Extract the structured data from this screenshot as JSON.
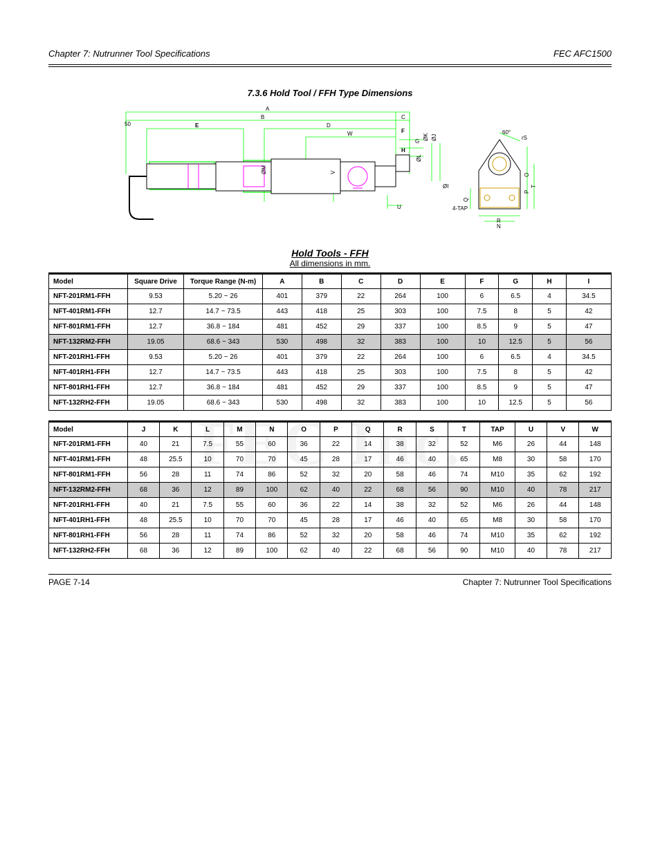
{
  "meta": {
    "chapter_left": "Chapter 7: Nutrunner Tool Specifications",
    "chapter_right": "FEC AFC1500",
    "title": "7.3.6 Hold Tool / FFH Type Dimensions",
    "subtitle_over_tables": "Hold Tools - FFH",
    "units": "All dimensions in mm.",
    "footer_left": "PAGE 7-14",
    "footer_right": "Chapter 7: Nutrunner Tool Specifications",
    "watermark": "FEC Inc."
  },
  "diagram": {
    "background": "#ffffff",
    "outline_dim_color": "#00ff00",
    "body_color": "#000000",
    "accent_color": "#ff00ff",
    "mount_color": "#cc9900",
    "labels": [
      "A",
      "B",
      "C",
      "D",
      "E",
      "F",
      "G",
      "H",
      "ØI",
      "ØJ",
      "ØK",
      "ØL",
      "ØM",
      "N",
      "O",
      "P",
      "Q",
      "R",
      "rS",
      "T",
      "U",
      "V",
      "W",
      "50",
      "60°",
      "4-TAP"
    ]
  },
  "table1": {
    "columns": [
      "Model",
      "Square Drive",
      "Torque Range (N-m)",
      "A",
      "B",
      "C",
      "D",
      "E",
      "F",
      "G",
      "H",
      "I"
    ],
    "col_widths_pct": [
      14,
      10,
      14,
      7,
      7,
      7,
      7,
      8,
      6,
      6,
      6,
      8
    ],
    "rows": [
      [
        "NFT-201RM1-FFH",
        "9.53",
        "5.20 ~ 26",
        "401",
        "379",
        "22",
        "264",
        "100",
        "6",
        "6.5",
        "4",
        "34.5"
      ],
      [
        "NFT-401RM1-FFH",
        "12.7",
        "14.7 ~ 73.5",
        "443",
        "418",
        "25",
        "303",
        "100",
        "7.5",
        "8",
        "5",
        "42"
      ],
      [
        "NFT-801RM1-FFH",
        "12.7",
        "36.8 ~ 184",
        "481",
        "452",
        "29",
        "337",
        "100",
        "8.5",
        "9",
        "5",
        "47"
      ],
      [
        "NFT-132RM2-FFH",
        "19.05",
        "68.6 ~ 343",
        "530",
        "498",
        "32",
        "383",
        "100",
        "10",
        "12.5",
        "5",
        "56"
      ],
      [
        "NFT-201RH1-FFH",
        "9.53",
        "5.20 ~ 26",
        "401",
        "379",
        "22",
        "264",
        "100",
        "6",
        "6.5",
        "4",
        "34.5"
      ],
      [
        "NFT-401RH1-FFH",
        "12.7",
        "14.7 ~ 73.5",
        "443",
        "418",
        "25",
        "303",
        "100",
        "7.5",
        "8",
        "5",
        "42"
      ],
      [
        "NFT-801RH1-FFH",
        "12.7",
        "36.8 ~ 184",
        "481",
        "452",
        "29",
        "337",
        "100",
        "8.5",
        "9",
        "5",
        "47"
      ],
      [
        "NFT-132RH2-FFH",
        "19.05",
        "68.6 ~ 343",
        "530",
        "498",
        "32",
        "383",
        "100",
        "10",
        "12.5",
        "5",
        "56"
      ]
    ],
    "shade_row_index": 3
  },
  "table2": {
    "columns": [
      "Model",
      "J",
      "K",
      "L",
      "M",
      "N",
      "O",
      "P",
      "Q",
      "R",
      "S",
      "T",
      "TAP",
      "U",
      "V",
      "W"
    ],
    "col_widths_pct": [
      14,
      5.7,
      5.7,
      5.7,
      5.7,
      5.7,
      5.7,
      5.7,
      5.7,
      5.7,
      5.7,
      5.7,
      6.2,
      5.7,
      5.7,
      5.7
    ],
    "rows": [
      [
        "NFT-201RM1-FFH",
        "40",
        "21",
        "7.5",
        "55",
        "60",
        "36",
        "22",
        "14",
        "38",
        "32",
        "52",
        "M6",
        "26",
        "44",
        "148"
      ],
      [
        "NFT-401RM1-FFH",
        "48",
        "25.5",
        "10",
        "70",
        "70",
        "45",
        "28",
        "17",
        "46",
        "40",
        "65",
        "M8",
        "30",
        "58",
        "170"
      ],
      [
        "NFT-801RM1-FFH",
        "56",
        "28",
        "11",
        "74",
        "86",
        "52",
        "32",
        "20",
        "58",
        "46",
        "74",
        "M10",
        "35",
        "62",
        "192"
      ],
      [
        "NFT-132RM2-FFH",
        "68",
        "36",
        "12",
        "89",
        "100",
        "62",
        "40",
        "22",
        "68",
        "56",
        "90",
        "M10",
        "40",
        "78",
        "217"
      ],
      [
        "NFT-201RH1-FFH",
        "40",
        "21",
        "7.5",
        "55",
        "60",
        "36",
        "22",
        "14",
        "38",
        "32",
        "52",
        "M6",
        "26",
        "44",
        "148"
      ],
      [
        "NFT-401RH1-FFH",
        "48",
        "25.5",
        "10",
        "70",
        "70",
        "45",
        "28",
        "17",
        "46",
        "40",
        "65",
        "M8",
        "30",
        "58",
        "170"
      ],
      [
        "NFT-801RH1-FFH",
        "56",
        "28",
        "11",
        "74",
        "86",
        "52",
        "32",
        "20",
        "58",
        "46",
        "74",
        "M10",
        "35",
        "62",
        "192"
      ],
      [
        "NFT-132RH2-FFH",
        "68",
        "36",
        "12",
        "89",
        "100",
        "62",
        "40",
        "22",
        "68",
        "56",
        "90",
        "M10",
        "40",
        "78",
        "217"
      ]
    ],
    "shade_row_index": 3
  },
  "colors": {
    "page_bg": "#ffffff",
    "text": "#000000",
    "rule": "#000000",
    "shade": "#cccccc"
  }
}
